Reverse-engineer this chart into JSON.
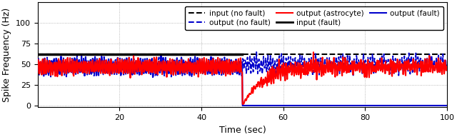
{
  "xlabel": "Time (sec)",
  "ylabel": "Spike Frequency (Hz)",
  "xlim": [
    0,
    100
  ],
  "ylim": [
    -2,
    125
  ],
  "yticks": [
    0,
    25,
    50,
    75,
    100
  ],
  "xticks": [
    20,
    40,
    60,
    80,
    100
  ],
  "input_no_fault_level": 62,
  "input_fault_level": 62,
  "fault_time": 50,
  "astrocyte_base_level": 47,
  "astrocyte_recovery_tau": 5,
  "astrocyte_recovered_level": 47,
  "noise_amplitude": 8,
  "noise_freq": 1.8,
  "colors": {
    "input_no_fault": "#000000",
    "input_fault": "#000000",
    "output_no_fault": "#0000cc",
    "output_fault": "#0000cc",
    "astrocyte": "#ff0000"
  },
  "legend_fontsize": 7.5,
  "axis_fontsize": 9,
  "tick_fontsize": 8,
  "figsize": [
    6.4,
    1.92
  ],
  "dpi": 100
}
